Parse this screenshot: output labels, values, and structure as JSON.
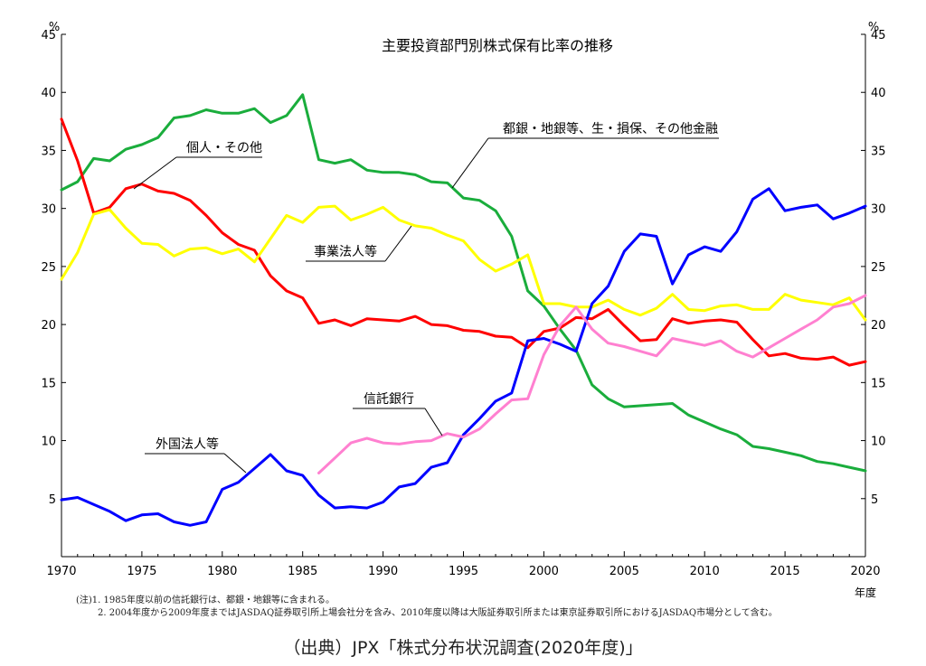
{
  "chart_data": {
    "type": "line",
    "title": "主要投資部門別株式保有比率の推移",
    "yunit_left": "%",
    "yunit_right": "%",
    "xlabel": "年度",
    "xlim": [
      1970,
      2020
    ],
    "ylim": [
      0,
      45
    ],
    "xticks": [
      1970,
      1975,
      1980,
      1985,
      1990,
      1995,
      2000,
      2005,
      2010,
      2015,
      2020
    ],
    "yticks": [
      5,
      10,
      15,
      20,
      25,
      30,
      35,
      40,
      45
    ],
    "grid": false,
    "series": [
      {
        "name": "都銀・地銀等、生・損保、その他金融",
        "color": "#1aad3c",
        "x": [
          1970,
          1971,
          1972,
          1973,
          1974,
          1975,
          1976,
          1977,
          1978,
          1979,
          1980,
          1981,
          1982,
          1983,
          1984,
          1985,
          1986,
          1987,
          1988,
          1989,
          1990,
          1991,
          1992,
          1993,
          1994,
          1995,
          1996,
          1997,
          1998,
          1999,
          2000,
          2001,
          2002,
          2003,
          2004,
          2005,
          2006,
          2007,
          2008,
          2009,
          2010,
          2011,
          2012,
          2013,
          2014,
          2015,
          2016,
          2017,
          2018,
          2019,
          2020
        ],
        "values": [
          31.6,
          32.3,
          34.3,
          34.1,
          35.1,
          35.5,
          36.1,
          37.8,
          38.0,
          38.5,
          38.2,
          38.2,
          38.6,
          37.4,
          38.0,
          39.8,
          34.2,
          33.9,
          34.2,
          33.3,
          33.1,
          33.1,
          32.9,
          32.3,
          32.2,
          30.9,
          30.7,
          29.8,
          27.6,
          22.9,
          21.6,
          19.6,
          17.8,
          14.8,
          13.6,
          12.9,
          13.0,
          13.1,
          13.2,
          12.2,
          11.6,
          11.0,
          10.5,
          9.5,
          9.3,
          9.0,
          8.7,
          8.2,
          8.0,
          7.7,
          7.4
        ]
      },
      {
        "name": "個人・その他",
        "color": "#ff0000",
        "x": [
          1970,
          1971,
          1972,
          1973,
          1974,
          1975,
          1976,
          1977,
          1978,
          1979,
          1980,
          1981,
          1982,
          1983,
          1984,
          1985,
          1986,
          1987,
          1988,
          1989,
          1990,
          1991,
          1992,
          1993,
          1994,
          1995,
          1996,
          1997,
          1998,
          1999,
          2000,
          2001,
          2002,
          2003,
          2004,
          2005,
          2006,
          2007,
          2008,
          2009,
          2010,
          2011,
          2012,
          2013,
          2014,
          2015,
          2016,
          2017,
          2018,
          2019,
          2020
        ],
        "values": [
          37.7,
          34.1,
          29.6,
          30.1,
          31.7,
          32.1,
          31.5,
          31.3,
          30.7,
          29.4,
          27.9,
          26.9,
          26.4,
          24.2,
          22.9,
          22.3,
          20.1,
          20.4,
          19.9,
          20.5,
          20.4,
          20.3,
          20.7,
          20.0,
          19.9,
          19.5,
          19.4,
          19.0,
          18.9,
          18.0,
          19.4,
          19.7,
          20.6,
          20.5,
          21.3,
          19.9,
          18.6,
          18.7,
          20.5,
          20.1,
          20.3,
          20.4,
          20.2,
          18.7,
          17.3,
          17.5,
          17.1,
          17.0,
          17.2,
          16.5,
          16.8
        ]
      },
      {
        "name": "事業法人等",
        "color": "#ffff00",
        "x": [
          1970,
          1971,
          1972,
          1973,
          1974,
          1975,
          1976,
          1977,
          1978,
          1979,
          1980,
          1981,
          1982,
          1983,
          1984,
          1985,
          1986,
          1987,
          1988,
          1989,
          1990,
          1991,
          1992,
          1993,
          1994,
          1995,
          1996,
          1997,
          1998,
          1999,
          2000,
          2001,
          2002,
          2003,
          2004,
          2005,
          2006,
          2007,
          2008,
          2009,
          2010,
          2011,
          2012,
          2013,
          2014,
          2015,
          2016,
          2017,
          2018,
          2019,
          2020
        ],
        "values": [
          23.9,
          26.2,
          29.5,
          29.9,
          28.3,
          27.0,
          26.9,
          25.9,
          26.5,
          26.6,
          26.1,
          26.5,
          25.4,
          27.4,
          29.4,
          28.8,
          30.1,
          30.2,
          29.0,
          29.5,
          30.1,
          29.0,
          28.5,
          28.3,
          27.7,
          27.2,
          25.6,
          24.6,
          25.2,
          26.0,
          21.8,
          21.8,
          21.5,
          21.5,
          22.1,
          21.3,
          20.8,
          21.4,
          22.6,
          21.3,
          21.2,
          21.6,
          21.7,
          21.3,
          21.3,
          22.6,
          22.1,
          21.9,
          21.7,
          22.3,
          20.4
        ]
      },
      {
        "name": "外国法人等",
        "color": "#0000ff",
        "x": [
          1970,
          1971,
          1972,
          1973,
          1974,
          1975,
          1976,
          1977,
          1978,
          1979,
          1980,
          1981,
          1982,
          1983,
          1984,
          1985,
          1986,
          1987,
          1988,
          1989,
          1990,
          1991,
          1992,
          1993,
          1994,
          1995,
          1996,
          1997,
          1998,
          1999,
          2000,
          2001,
          2002,
          2003,
          2004,
          2005,
          2006,
          2007,
          2008,
          2009,
          2010,
          2011,
          2012,
          2013,
          2014,
          2015,
          2016,
          2017,
          2018,
          2019,
          2020
        ],
        "values": [
          4.9,
          5.1,
          4.5,
          3.9,
          3.1,
          3.6,
          3.7,
          3.0,
          2.7,
          3.0,
          5.8,
          6.4,
          7.6,
          8.8,
          7.4,
          7.0,
          5.3,
          4.2,
          4.3,
          4.2,
          4.7,
          6.0,
          6.3,
          7.7,
          8.1,
          10.5,
          11.9,
          13.4,
          14.1,
          18.6,
          18.8,
          18.3,
          17.7,
          21.8,
          23.3,
          26.3,
          27.8,
          27.6,
          23.5,
          26.0,
          26.7,
          26.3,
          28.0,
          30.8,
          31.7,
          29.8,
          30.1,
          30.3,
          29.1,
          29.6,
          30.2
        ]
      },
      {
        "name": "信託銀行",
        "color": "#ff80d0",
        "x": [
          1986,
          1987,
          1988,
          1989,
          1990,
          1991,
          1992,
          1993,
          1994,
          1995,
          1996,
          1997,
          1998,
          1999,
          2000,
          2001,
          2002,
          2003,
          2004,
          2005,
          2006,
          2007,
          2008,
          2009,
          2010,
          2011,
          2012,
          2013,
          2014,
          2015,
          2016,
          2017,
          2018,
          2019,
          2020
        ],
        "values": [
          7.2,
          8.5,
          9.8,
          10.2,
          9.8,
          9.7,
          9.9,
          10.0,
          10.6,
          10.3,
          11.0,
          12.3,
          13.5,
          13.6,
          17.4,
          19.9,
          21.5,
          19.6,
          18.4,
          18.1,
          17.7,
          17.3,
          18.8,
          18.5,
          18.2,
          18.6,
          17.7,
          17.2,
          18.0,
          18.8,
          19.6,
          20.4,
          21.5,
          21.8,
          22.5
        ]
      }
    ],
    "annotations": [
      {
        "series": 0,
        "text": "都銀・地銀等、生・損保、その他金融"
      },
      {
        "series": 1,
        "text": "個人・その他"
      },
      {
        "series": 2,
        "text": "事業法人等"
      },
      {
        "series": 4,
        "text": "信託銀行"
      },
      {
        "series": 3,
        "text": "外国法人等"
      }
    ]
  },
  "notes": [
    "(注)1. 1985年度以前の信託銀行は、都銀・地銀等に含まれる。",
    "2. 2004年度から2009年度まではJASDAQ証券取引所上場会社分を含み、2010年度以降は大阪証券取引所または東京証券取引所におけるJASDAQ市場分として含む。"
  ],
  "source": "（出典）JPX「株式分布状況調査(2020年度)」"
}
